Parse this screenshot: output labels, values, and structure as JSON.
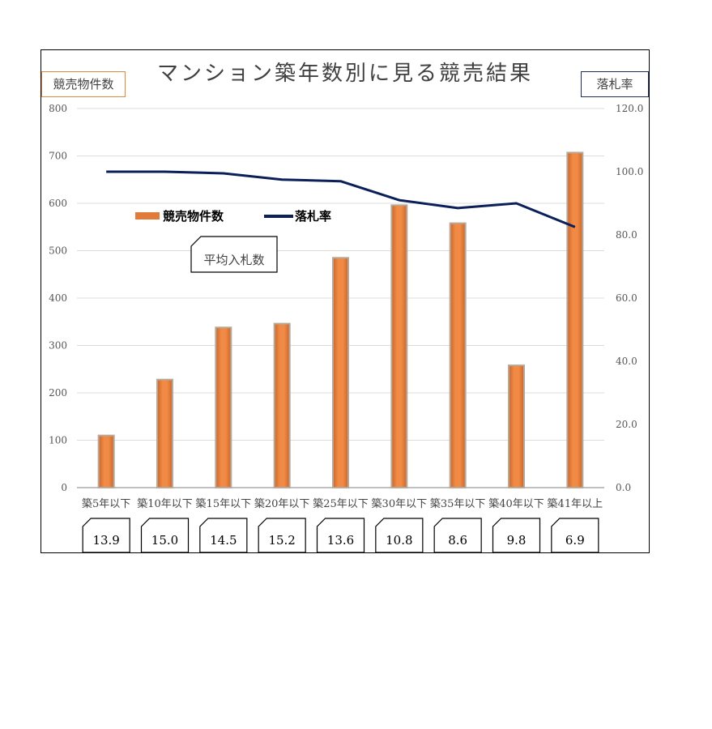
{
  "chart_data": {
    "type": "bar",
    "title": "マンション築年数別に見る競売結果",
    "y1_label": "競売物件数",
    "y2_label": "落札率",
    "categories": [
      "築5年以下",
      "築10年以下",
      "築15年以下",
      "築20年以下",
      "築25年以下",
      "築30年以下",
      "築35年以下",
      "築40年以下",
      "築41年以上"
    ],
    "y1_ticks": [
      "0",
      "100",
      "200",
      "300",
      "400",
      "500",
      "600",
      "700",
      "800"
    ],
    "y2_ticks": [
      "0.0",
      "20.0",
      "40.0",
      "60.0",
      "80.0",
      "100.0",
      "120.0"
    ],
    "ylim": [
      0,
      800
    ],
    "y2lim": [
      0,
      120
    ],
    "grid": true,
    "legend_position": "upper-left",
    "series": [
      {
        "name": "競売物件数",
        "type": "bar",
        "axis": "left",
        "color": "#e07b39",
        "values": [
          110,
          228,
          338,
          346,
          485,
          596,
          558,
          258,
          707
        ]
      },
      {
        "name": "落札率",
        "type": "line",
        "axis": "right",
        "color": "#0b1f5b",
        "values": [
          100.0,
          100.0,
          99.5,
          97.5,
          97.0,
          91.0,
          88.5,
          90.0,
          82.5
        ]
      }
    ],
    "annotation": {
      "label": "平均入札数",
      "values": [
        "13.9",
        "15.0",
        "14.5",
        "15.2",
        "13.6",
        "10.8",
        "8.6",
        "9.8",
        "6.9"
      ]
    }
  }
}
